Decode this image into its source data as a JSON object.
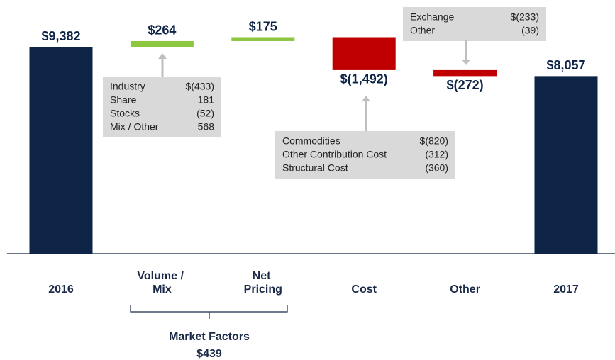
{
  "chart_data": {
    "type": "waterfall",
    "categories": [
      "2016",
      "Volume / Mix",
      "Net Pricing",
      "Cost",
      "Other",
      "2017"
    ],
    "values": [
      9382,
      264,
      175,
      -1492,
      -272,
      8057
    ],
    "value_labels": [
      "$9,382",
      "$264",
      "$175",
      "$(1,492)",
      "$(272)",
      "$8,057"
    ],
    "measures": [
      "total",
      "relative",
      "relative",
      "relative",
      "relative",
      "total"
    ],
    "colors": {
      "total": "#0d2447",
      "increase": "#8dc63f",
      "decrease": "#c00000"
    },
    "callouts": [
      {
        "rows": [
          [
            "Industry",
            "$(433)"
          ],
          [
            "Share",
            "181"
          ],
          [
            "Stocks",
            "(52)"
          ],
          [
            "Mix / Other",
            "568"
          ]
        ]
      },
      {
        "rows": [
          [
            "Commodities",
            "$(820)"
          ],
          [
            "Other Contribution Cost",
            "(312)"
          ],
          [
            "Structural Cost",
            "(360)"
          ]
        ]
      },
      {
        "rows": [
          [
            "Exchange",
            "$(233)"
          ],
          [
            "Other",
            "(39)"
          ]
        ]
      }
    ],
    "group": {
      "label": "Market Factors",
      "value_label": "$439"
    }
  }
}
